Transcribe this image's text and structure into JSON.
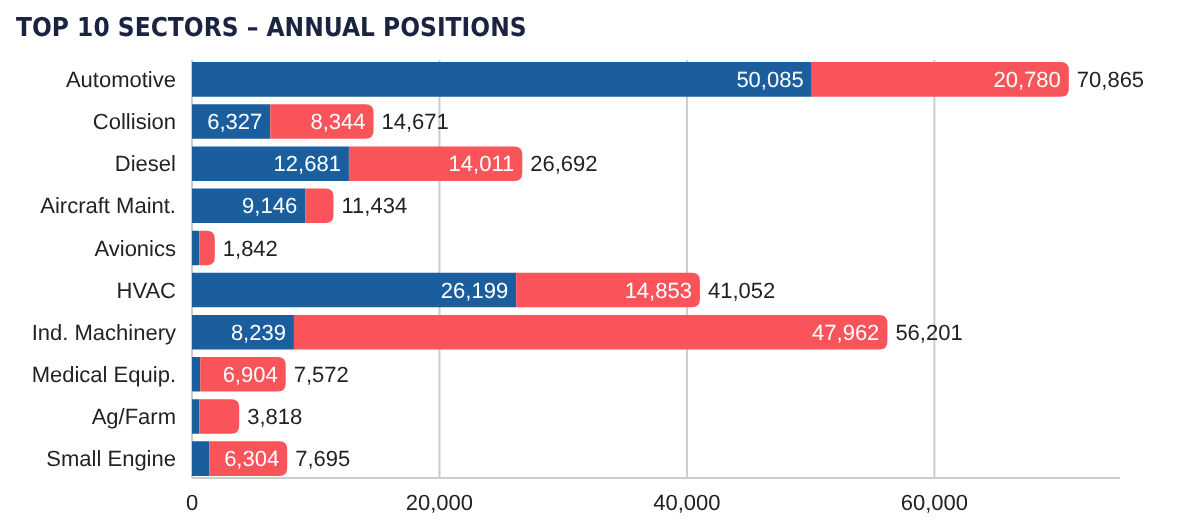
{
  "chart_data": {
    "type": "bar",
    "orientation": "horizontal",
    "stacked": true,
    "title": "TOP 10 SECTORS – ANNUAL POSITIONS",
    "categories": [
      "Automotive",
      "Collision",
      "Diesel",
      "Aircraft Maint.",
      "Avionics",
      "HVAC",
      "Ind. Machinery",
      "Medical Equip.",
      "Ag/Farm",
      "Small Engine"
    ],
    "series": [
      {
        "color": "#1b5e9e",
        "values": [
          50085,
          6327,
          12681,
          9146,
          600,
          26199,
          8239,
          668,
          600,
          1391
        ],
        "value_labels": [
          "50,085",
          "6,327",
          "12,681",
          "9,146",
          null,
          "26,199",
          "8,239",
          null,
          null,
          null
        ]
      },
      {
        "color": "#f8545a",
        "values": [
          20780,
          8344,
          14011,
          2288,
          1242,
          14853,
          47962,
          6904,
          3218,
          6304
        ],
        "value_labels": [
          "20,780",
          "8,344",
          "14,011",
          null,
          null,
          "14,853",
          "47,962",
          "6,904",
          null,
          "6,304"
        ]
      }
    ],
    "totals": [
      "70,865",
      "14,671",
      "26,692",
      "11,434",
      "1,842",
      "41,052",
      "56,201",
      "7,572",
      "3,818",
      "7,695"
    ],
    "xlim": [
      0,
      75000
    ],
    "xticks": [
      {
        "value": 0,
        "label": "0"
      },
      {
        "value": 20000,
        "label": "20,000"
      },
      {
        "value": 40000,
        "label": "40,000"
      },
      {
        "value": 60000,
        "label": "60,000"
      }
    ],
    "grid": "x"
  }
}
